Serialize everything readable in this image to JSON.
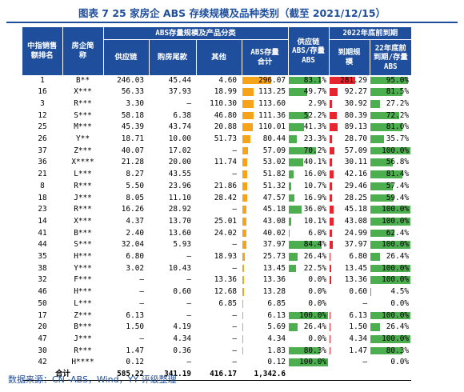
{
  "title": "图表 7   25 家房企 ABS 存续规模及品种类别（截至 2021/12/15）",
  "source": "数据来源：CN -ABS，Wind，YY 评级整理",
  "headers": {
    "rank": "中指销售额排名",
    "company": "房企简称",
    "abs_group": "ABS存量规模及产品分类",
    "supply_chain": "供应链",
    "mortgage_tail": "购房尾款",
    "other": "其他",
    "abs_total": "ABS存量合计",
    "supply_ratio": "供应链ABS/存量ABS",
    "due_group": "2022年底前到期",
    "due_amount": "到期规模",
    "due_ratio": "22年底前到期/存量ABS"
  },
  "colors": {
    "header_bg": "#1f4e9c",
    "abs_bar": "#f5a31a",
    "ratio_bar": "#4cae4f",
    "due_bar": "#e5262e",
    "title": "#1f4e9c"
  },
  "scales": {
    "abs_total_max": 296.07,
    "due_amount_max": 281.29
  },
  "rows": [
    {
      "rank": "1",
      "company": "B**",
      "supply_chain": "246.03",
      "mortgage_tail": "45.44",
      "other": "4.60",
      "abs_total": "296.07",
      "abs_total_value": 296.07,
      "supply_ratio": "83.1%",
      "supply_ratio_value": 83.1,
      "due_amount": "281.29",
      "due_amount_value": 281.29,
      "due_ratio": "95.0%",
      "due_ratio_value": 95.0
    },
    {
      "rank": "16",
      "company": "X***",
      "supply_chain": "56.33",
      "mortgage_tail": "37.93",
      "other": "18.99",
      "abs_total": "113.25",
      "abs_total_value": 113.25,
      "supply_ratio": "49.7%",
      "supply_ratio_value": 49.7,
      "due_amount": "92.27",
      "due_amount_value": 92.27,
      "due_ratio": "81.5%",
      "due_ratio_value": 81.5
    },
    {
      "rank": "3",
      "company": "R***",
      "supply_chain": "3.30",
      "mortgage_tail": "–",
      "other": "110.30",
      "abs_total": "113.60",
      "abs_total_value": 113.6,
      "supply_ratio": "2.9%",
      "supply_ratio_value": 2.9,
      "due_amount": "30.92",
      "due_amount_value": 30.92,
      "due_ratio": "27.2%",
      "due_ratio_value": 27.2
    },
    {
      "rank": "12",
      "company": "S***",
      "supply_chain": "58.18",
      "mortgage_tail": "6.38",
      "other": "46.80",
      "abs_total": "111.36",
      "abs_total_value": 111.36,
      "supply_ratio": "52.2%",
      "supply_ratio_value": 52.2,
      "due_amount": "80.39",
      "due_amount_value": 80.39,
      "due_ratio": "72.2%",
      "due_ratio_value": 72.2
    },
    {
      "rank": "25",
      "company": "M***",
      "supply_chain": "45.39",
      "mortgage_tail": "43.74",
      "other": "20.88",
      "abs_total": "110.01",
      "abs_total_value": 110.01,
      "supply_ratio": "41.3%",
      "supply_ratio_value": 41.3,
      "due_amount": "89.13",
      "due_amount_value": 89.13,
      "due_ratio": "81.0%",
      "due_ratio_value": 81.0
    },
    {
      "rank": "26",
      "company": "Y**",
      "supply_chain": "18.71",
      "mortgage_tail": "10.00",
      "other": "51.73",
      "abs_total": "80.44",
      "abs_total_value": 80.44,
      "supply_ratio": "23.3%",
      "supply_ratio_value": 23.3,
      "due_amount": "28.70",
      "due_amount_value": 28.7,
      "due_ratio": "35.7%",
      "due_ratio_value": 35.7
    },
    {
      "rank": "37",
      "company": "Z***",
      "supply_chain": "40.07",
      "mortgage_tail": "17.02",
      "other": "–",
      "abs_total": "57.09",
      "abs_total_value": 57.09,
      "supply_ratio": "70.2%",
      "supply_ratio_value": 70.2,
      "due_amount": "57.09",
      "due_amount_value": 57.09,
      "due_ratio": "100.0%",
      "due_ratio_value": 100.0
    },
    {
      "rank": "36",
      "company": "X****",
      "supply_chain": "21.28",
      "mortgage_tail": "20.00",
      "other": "11.74",
      "abs_total": "53.02",
      "abs_total_value": 53.02,
      "supply_ratio": "40.1%",
      "supply_ratio_value": 40.1,
      "due_amount": "30.11",
      "due_amount_value": 30.11,
      "due_ratio": "56.8%",
      "due_ratio_value": 56.8
    },
    {
      "rank": "21",
      "company": "L***",
      "supply_chain": "8.27",
      "mortgage_tail": "43.55",
      "other": "–",
      "abs_total": "51.82",
      "abs_total_value": 51.82,
      "supply_ratio": "16.0%",
      "supply_ratio_value": 16.0,
      "due_amount": "42.16",
      "due_amount_value": 42.16,
      "due_ratio": "81.4%",
      "due_ratio_value": 81.4
    },
    {
      "rank": "8",
      "company": "R***",
      "supply_chain": "5.50",
      "mortgage_tail": "23.96",
      "other": "21.86",
      "abs_total": "51.32",
      "abs_total_value": 51.32,
      "supply_ratio": "10.7%",
      "supply_ratio_value": 10.7,
      "due_amount": "29.46",
      "due_amount_value": 29.46,
      "due_ratio": "57.4%",
      "due_ratio_value": 57.4
    },
    {
      "rank": "18",
      "company": "J***",
      "supply_chain": "8.05",
      "mortgage_tail": "11.10",
      "other": "28.42",
      "abs_total": "47.57",
      "abs_total_value": 47.57,
      "supply_ratio": "16.9%",
      "supply_ratio_value": 16.9,
      "due_amount": "28.25",
      "due_amount_value": 28.25,
      "due_ratio": "59.4%",
      "due_ratio_value": 59.4
    },
    {
      "rank": "23",
      "company": "R***",
      "supply_chain": "16.26",
      "mortgage_tail": "28.92",
      "other": "–",
      "abs_total": "45.18",
      "abs_total_value": 45.18,
      "supply_ratio": "36.0%",
      "supply_ratio_value": 36.0,
      "due_amount": "45.18",
      "due_amount_value": 45.18,
      "due_ratio": "100.0%",
      "due_ratio_value": 100.0
    },
    {
      "rank": "14",
      "company": "X***",
      "supply_chain": "4.37",
      "mortgage_tail": "13.70",
      "other": "25.01",
      "abs_total": "43.08",
      "abs_total_value": 43.08,
      "supply_ratio": "10.1%",
      "supply_ratio_value": 10.1,
      "due_amount": "43.08",
      "due_amount_value": 43.08,
      "due_ratio": "100.0%",
      "due_ratio_value": 100.0
    },
    {
      "rank": "41",
      "company": "B***",
      "supply_chain": "2.40",
      "mortgage_tail": "13.60",
      "other": "24.02",
      "abs_total": "40.02",
      "abs_total_value": 40.02,
      "supply_ratio": "6.0%",
      "supply_ratio_value": 6.0,
      "due_amount": "24.99",
      "due_amount_value": 24.99,
      "due_ratio": "62.4%",
      "due_ratio_value": 62.4
    },
    {
      "rank": "44",
      "company": "S***",
      "supply_chain": "32.04",
      "mortgage_tail": "5.93",
      "other": "–",
      "abs_total": "37.97",
      "abs_total_value": 37.97,
      "supply_ratio": "84.4%",
      "supply_ratio_value": 84.4,
      "due_amount": "37.97",
      "due_amount_value": 37.97,
      "due_ratio": "100.0%",
      "due_ratio_value": 100.0
    },
    {
      "rank": "35",
      "company": "H***",
      "supply_chain": "6.80",
      "mortgage_tail": "–",
      "other": "18.93",
      "abs_total": "25.73",
      "abs_total_value": 25.73,
      "supply_ratio": "26.4%",
      "supply_ratio_value": 26.4,
      "due_amount": "6.80",
      "due_amount_value": 6.8,
      "due_ratio": "26.4%",
      "due_ratio_value": 26.4
    },
    {
      "rank": "38",
      "company": "Y***",
      "supply_chain": "3.02",
      "mortgage_tail": "10.43",
      "other": "–",
      "abs_total": "13.45",
      "abs_total_value": 13.45,
      "supply_ratio": "22.5%",
      "supply_ratio_value": 22.5,
      "due_amount": "13.45",
      "due_amount_value": 13.45,
      "due_ratio": "100.0%",
      "due_ratio_value": 100.0
    },
    {
      "rank": "32",
      "company": "F***",
      "supply_chain": "–",
      "mortgage_tail": "–",
      "other": "13.36",
      "abs_total": "13.36",
      "abs_total_value": 13.36,
      "supply_ratio": "0.0%",
      "supply_ratio_value": 0.0,
      "due_amount": "13.36",
      "due_amount_value": 13.36,
      "due_ratio": "100.0%",
      "due_ratio_value": 100.0
    },
    {
      "rank": "46",
      "company": "H***",
      "supply_chain": "–",
      "mortgage_tail": "0.60",
      "other": "12.68",
      "abs_total": "13.28",
      "abs_total_value": 13.28,
      "supply_ratio": "0.0%",
      "supply_ratio_value": 0.0,
      "due_amount": "0.60",
      "due_amount_value": 0.6,
      "due_ratio": "4.5%",
      "due_ratio_value": 4.5
    },
    {
      "rank": "50",
      "company": "L***",
      "supply_chain": "–",
      "mortgage_tail": "–",
      "other": "6.85",
      "abs_total": "6.85",
      "abs_total_value": 6.85,
      "supply_ratio": "0.0%",
      "supply_ratio_value": 0.0,
      "due_amount": "–",
      "due_amount_value": 0,
      "due_ratio": "0.0%",
      "due_ratio_value": 0.0
    },
    {
      "rank": "17",
      "company": "Z***",
      "supply_chain": "6.13",
      "mortgage_tail": "–",
      "other": "–",
      "abs_total": "6.13",
      "abs_total_value": 6.13,
      "supply_ratio": "100.0%",
      "supply_ratio_value": 100.0,
      "due_amount": "6.13",
      "due_amount_value": 6.13,
      "due_ratio": "100.0%",
      "due_ratio_value": 100.0
    },
    {
      "rank": "20",
      "company": "B***",
      "supply_chain": "1.50",
      "mortgage_tail": "4.19",
      "other": "–",
      "abs_total": "5.69",
      "abs_total_value": 5.69,
      "supply_ratio": "26.4%",
      "supply_ratio_value": 26.4,
      "due_amount": "1.50",
      "due_amount_value": 1.5,
      "due_ratio": "26.4%",
      "due_ratio_value": 26.4
    },
    {
      "rank": "47",
      "company": "J***",
      "supply_chain": "–",
      "mortgage_tail": "4.34",
      "other": "–",
      "abs_total": "4.34",
      "abs_total_value": 4.34,
      "supply_ratio": "0.0%",
      "supply_ratio_value": 0.0,
      "due_amount": "4.34",
      "due_amount_value": 4.34,
      "due_ratio": "100.0%",
      "due_ratio_value": 100.0
    },
    {
      "rank": "30",
      "company": "R***",
      "supply_chain": "1.47",
      "mortgage_tail": "0.36",
      "other": "–",
      "abs_total": "1.83",
      "abs_total_value": 1.83,
      "supply_ratio": "80.3%",
      "supply_ratio_value": 80.3,
      "due_amount": "1.47",
      "due_amount_value": 1.47,
      "due_ratio": "80.3%",
      "due_ratio_value": 80.3
    },
    {
      "rank": "42",
      "company": "H****",
      "supply_chain": "0.12",
      "mortgage_tail": "–",
      "other": "–",
      "abs_total": "0.12",
      "abs_total_value": 0.12,
      "supply_ratio": "100.0%",
      "supply_ratio_value": 100.0,
      "due_amount": "–",
      "due_amount_value": 0,
      "due_ratio": "0.0%",
      "due_ratio_value": 0.0
    }
  ],
  "total": {
    "label": "合计",
    "supply_chain": "585.22",
    "mortgage_tail": "341.19",
    "other": "416.17",
    "abs_total": "1,342.6"
  }
}
